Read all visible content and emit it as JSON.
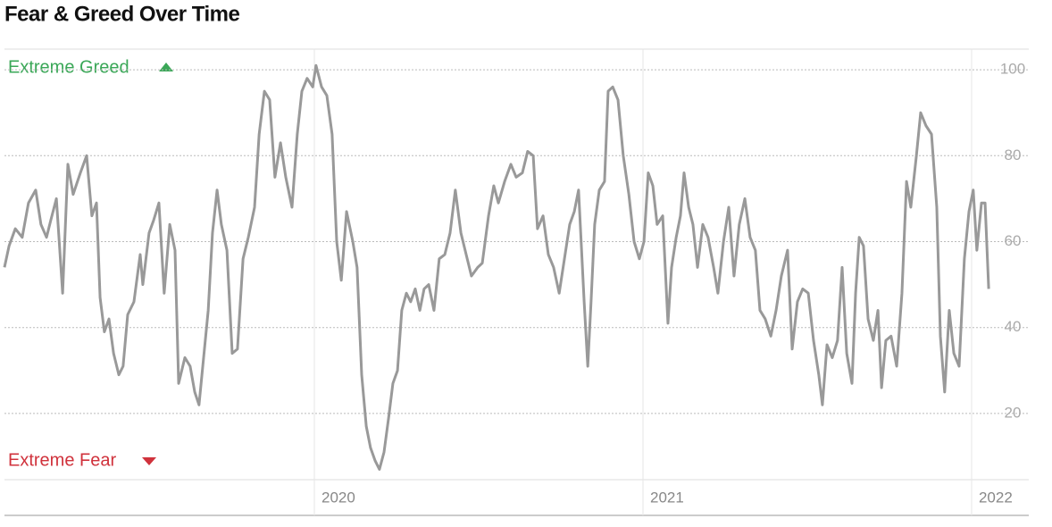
{
  "chart_data": {
    "type": "line",
    "title": "Fear & Greed Over Time",
    "annotations": [
      "Extreme Greed",
      "Extreme Fear"
    ],
    "color": "#999999",
    "xlim": [
      2019.057,
      2022.174
    ],
    "xticks": [
      2020,
      2021,
      2022
    ],
    "ylim": [
      4.6,
      104.8
    ],
    "yticks": [
      20,
      40,
      60,
      80,
      100
    ],
    "grid": true,
    "x": [
      2019.057,
      2019.071,
      2019.09,
      2019.111,
      2019.13,
      2019.152,
      2019.168,
      2019.185,
      2019.198,
      2019.215,
      2019.234,
      2019.25,
      2019.266,
      2019.288,
      2019.307,
      2019.323,
      2019.337,
      2019.348,
      2019.361,
      2019.375,
      2019.389,
      2019.405,
      2019.418,
      2019.432,
      2019.451,
      2019.47,
      2019.478,
      2019.497,
      2019.511,
      2019.527,
      2019.543,
      2019.56,
      2019.576,
      2019.587,
      2019.606,
      2019.622,
      2019.636,
      2019.649,
      2019.663,
      2019.677,
      2019.69,
      2019.704,
      2019.717,
      2019.734,
      2019.75,
      2019.766,
      2019.783,
      2019.799,
      2019.818,
      2019.832,
      2019.848,
      2019.864,
      2019.88,
      2019.897,
      2019.913,
      2019.932,
      2019.948,
      2019.962,
      2019.978,
      2019.995,
      2020.005,
      2020.022,
      2020.038,
      2020.054,
      2020.068,
      2020.082,
      2020.098,
      2020.117,
      2020.13,
      2020.144,
      2020.158,
      2020.171,
      2020.185,
      2020.198,
      2020.212,
      2020.226,
      2020.239,
      2020.253,
      2020.266,
      2020.28,
      2020.293,
      2020.307,
      2020.321,
      2020.334,
      2020.348,
      2020.364,
      2020.38,
      2020.397,
      2020.413,
      2020.429,
      2020.446,
      2020.462,
      2020.478,
      2020.497,
      2020.511,
      2020.53,
      2020.546,
      2020.56,
      2020.579,
      2020.598,
      2020.614,
      2020.633,
      2020.649,
      2020.666,
      2020.679,
      2020.696,
      2020.712,
      2020.728,
      2020.745,
      2020.761,
      2020.777,
      2020.791,
      2020.804,
      2020.821,
      2020.832,
      2020.842,
      2020.853,
      2020.867,
      2020.883,
      2020.894,
      2020.908,
      2020.924,
      2020.94,
      2020.957,
      2020.973,
      2020.989,
      2021.003,
      2021.016,
      2021.03,
      2021.043,
      2021.06,
      2021.076,
      2021.087,
      2021.101,
      2021.114,
      2021.125,
      2021.139,
      2021.152,
      2021.166,
      2021.182,
      2021.198,
      2021.215,
      2021.228,
      2021.245,
      2021.261,
      2021.277,
      2021.293,
      2021.31,
      2021.326,
      2021.342,
      2021.356,
      2021.372,
      2021.389,
      2021.405,
      2021.421,
      2021.44,
      2021.454,
      2021.47,
      2021.486,
      2021.503,
      2021.519,
      2021.535,
      2021.546,
      2021.56,
      2021.576,
      2021.592,
      2021.606,
      2021.62,
      2021.636,
      2021.647,
      2021.658,
      2021.671,
      2021.685,
      2021.701,
      2021.715,
      2021.726,
      2021.739,
      2021.755,
      2021.772,
      2021.788,
      2021.802,
      2021.815,
      2021.832,
      2021.845,
      2021.861,
      2021.878,
      2021.894,
      2021.905,
      2021.918,
      2021.932,
      2021.946,
      2021.962,
      2021.978,
      2021.992,
      2022.005,
      2022.016,
      2022.03,
      2022.041,
      2022.052
    ],
    "values": [
      54,
      59,
      63,
      61,
      69,
      72,
      64,
      61,
      65,
      70,
      48,
      78,
      71,
      76,
      80,
      66,
      69,
      47,
      39,
      42,
      34,
      29,
      31,
      43,
      46,
      57,
      50,
      62,
      65,
      69,
      48,
      64,
      58,
      27,
      33,
      31,
      25,
      22,
      33,
      44,
      62,
      72,
      64,
      58,
      34,
      35,
      56,
      61,
      68,
      85,
      95,
      93,
      75,
      83,
      75,
      68,
      85,
      95,
      98,
      96,
      101,
      96,
      94,
      85,
      60,
      51,
      67,
      60,
      54,
      29,
      17,
      12,
      9,
      7,
      11,
      19,
      27,
      30,
      44,
      48,
      46,
      49,
      44,
      49,
      50,
      44,
      56,
      57,
      62,
      72,
      62,
      57,
      52,
      54,
      55,
      66,
      73,
      69,
      74,
      78,
      75,
      76,
      81,
      80,
      63,
      66,
      57,
      54,
      48,
      56,
      64,
      67,
      72,
      46,
      31,
      46,
      64,
      72,
      74,
      95,
      96,
      93,
      80,
      71,
      60,
      56,
      60,
      76,
      73,
      64,
      66,
      41,
      54,
      61,
      66,
      76,
      68,
      64,
      54,
      64,
      61,
      54,
      48,
      60,
      68,
      52,
      64,
      70,
      61,
      58,
      44,
      42,
      38,
      44,
      52,
      58,
      35,
      46,
      49,
      48,
      37,
      29,
      22,
      36,
      33,
      37,
      54,
      34,
      27,
      48,
      61,
      59,
      42,
      37,
      44,
      26,
      37,
      38,
      31,
      48,
      74,
      68,
      80,
      90,
      87,
      85,
      68,
      38,
      25,
      44,
      34,
      31,
      56,
      67,
      72,
      58,
      69,
      69,
      49
    ]
  }
}
